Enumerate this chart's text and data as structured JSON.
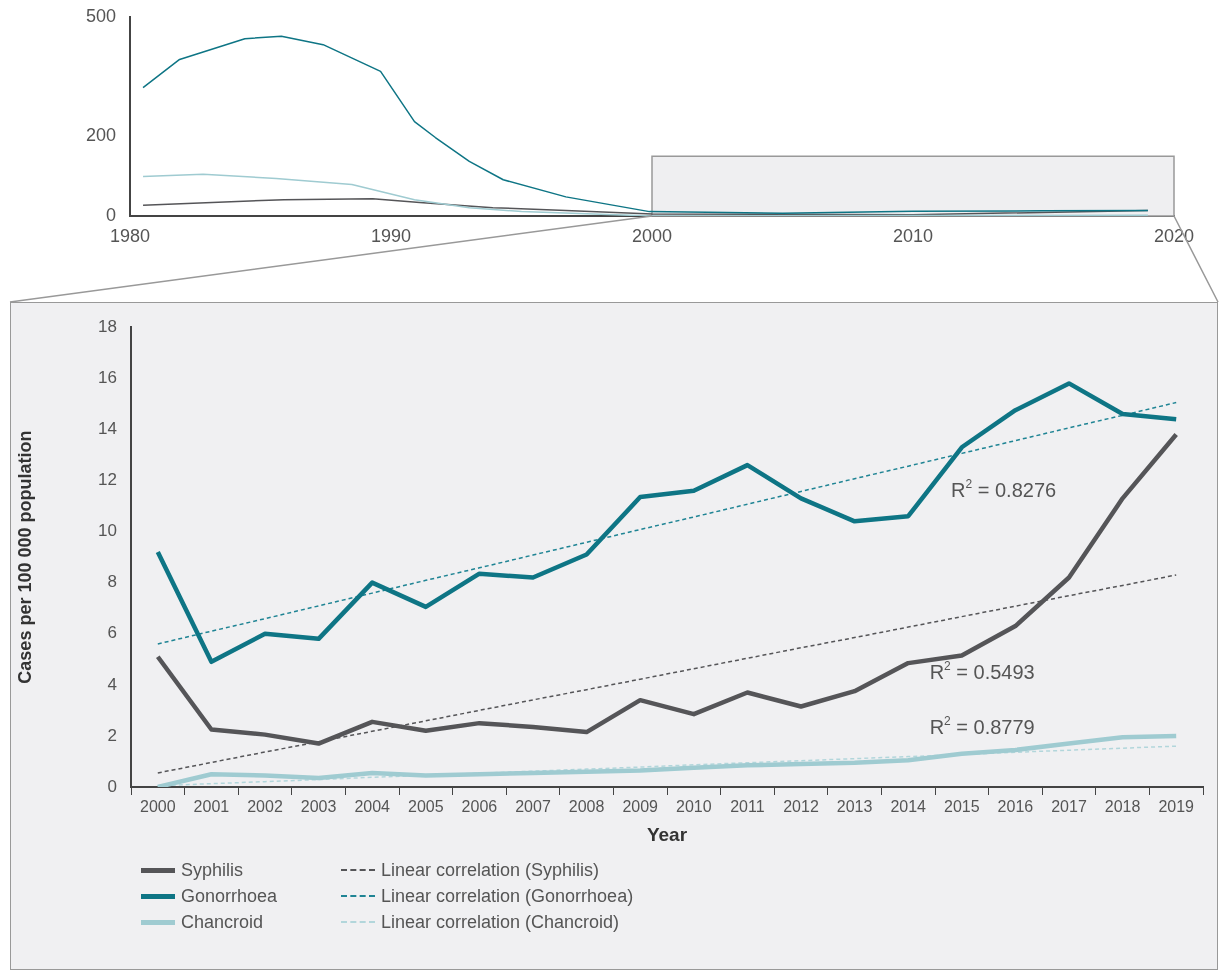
{
  "chart_data": [
    {
      "type": "line",
      "xlim": [
        1980,
        2020
      ],
      "xticks": [
        1980,
        1990,
        2000,
        2010,
        2020
      ],
      "ylim": [
        0,
        500
      ],
      "yticks": [
        0,
        200,
        500
      ],
      "grid": false,
      "bands": [
        {
          "axis": "x",
          "from": 2000,
          "to": 2020,
          "color": "#efeff1"
        }
      ],
      "series": [
        {
          "color": "#0e7585",
          "x": [
            1980.5,
            1981.9,
            1984.4,
            1985.8,
            1987.4,
            1989.6,
            1990.9,
            1991.7,
            1993,
            1994.3,
            1996.7,
            1999.9,
            2005,
            2010,
            2015,
            2019
          ],
          "values": [
            322,
            393,
            445,
            451,
            430,
            363,
            237,
            197,
            137,
            91,
            48,
            11,
            7,
            12,
            13,
            14
          ]
        },
        {
          "color": "#9fcbd1",
          "x": [
            1980.5,
            1982.8,
            1985.6,
            1988.5,
            1990.9,
            1993,
            1995,
            2000,
            2010,
            2019
          ],
          "values": [
            99,
            105,
            94,
            79,
            41,
            21,
            11,
            0,
            1,
            2
          ]
        },
        {
          "color": "#555558",
          "x": [
            1980.5,
            1985.9,
            1989.3,
            1991.1,
            1993.9,
            1996.7,
            2000,
            2010,
            2019
          ],
          "values": [
            27,
            41,
            43,
            34,
            21,
            14,
            5,
            3,
            14
          ]
        }
      ]
    },
    {
      "type": "line",
      "xlabel": "Year",
      "ylabel": "Cases per 100 000 population",
      "ylim": [
        0,
        18
      ],
      "yticks": [
        0,
        2,
        4,
        6,
        8,
        10,
        12,
        14,
        16,
        18
      ],
      "grid": false,
      "legend": "bottom",
      "line_style": "solid",
      "categories": [
        "2000",
        "2001",
        "2002",
        "2003",
        "2004",
        "2005",
        "2006",
        "2007",
        "2008",
        "2009",
        "2010",
        "2011",
        "2012",
        "2013",
        "2014",
        "2015",
        "2016",
        "2017",
        "2018",
        "2019"
      ],
      "series": [
        {
          "name": "Syphilis",
          "color": "#555558",
          "values": [
            5.1,
            2.25,
            2.05,
            1.7,
            2.55,
            2.2,
            2.5,
            2.35,
            2.15,
            3.4,
            2.85,
            3.7,
            3.15,
            3.75,
            4.85,
            5.15,
            6.3,
            8.2,
            11.3,
            13.8
          ]
        },
        {
          "name": "Gonorrhoea",
          "color": "#0e7585",
          "values": [
            9.2,
            4.9,
            6.0,
            5.8,
            8.0,
            7.05,
            8.35,
            8.2,
            9.1,
            11.35,
            11.6,
            12.6,
            11.3,
            10.4,
            10.6,
            13.3,
            14.75,
            15.8,
            14.6,
            14.4
          ]
        },
        {
          "name": "Chancroid",
          "color": "#9fcbd1",
          "values": [
            0,
            0.5,
            0.45,
            0.35,
            0.55,
            0.45,
            0.5,
            0.55,
            0.6,
            0.65,
            0.75,
            0.85,
            0.9,
            0.95,
            1.05,
            1.3,
            1.45,
            1.7,
            1.95,
            2.0
          ]
        },
        {
          "name": "Linear correlation (Syphilis)",
          "type": "line",
          "line_style": "dashed",
          "color": "#555558",
          "values": [
            0.55,
            0.96,
            1.37,
            1.77,
            2.18,
            2.59,
            3.0,
            3.41,
            3.81,
            4.22,
            4.63,
            5.04,
            5.45,
            5.85,
            6.26,
            6.67,
            7.08,
            7.49,
            7.89,
            8.3
          ]
        },
        {
          "name": "Linear correlation (Gonorrhoea)",
          "type": "line",
          "line_style": "dashed",
          "color": "#1f8494",
          "values": [
            5.6,
            6.1,
            6.59,
            7.09,
            7.59,
            8.09,
            8.58,
            9.08,
            9.58,
            10.08,
            10.57,
            11.07,
            11.57,
            12.07,
            12.56,
            13.06,
            13.56,
            14.06,
            14.55,
            15.05
          ]
        },
        {
          "name": "Linear correlation (Chancroid)",
          "type": "line",
          "line_style": "dashed",
          "color": "#b2d6db",
          "values": [
            0.05,
            0.13,
            0.21,
            0.29,
            0.38,
            0.46,
            0.54,
            0.62,
            0.7,
            0.78,
            0.87,
            0.95,
            1.03,
            1.11,
            1.19,
            1.27,
            1.36,
            1.44,
            1.52,
            1.6
          ]
        }
      ],
      "annotations": [
        "R$^{2}$ = 0.8276",
        "R$^{2}$ = 0.5493",
        "R$^{2}$ = 0.8779"
      ]
    }
  ]
}
